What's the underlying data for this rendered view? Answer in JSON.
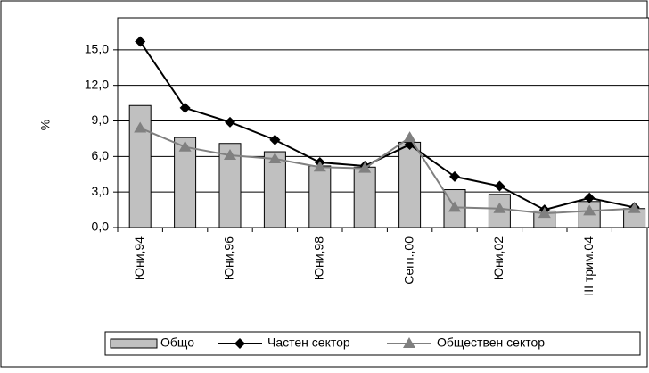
{
  "chart_data": {
    "type": "bar-line",
    "y_label": "%",
    "categories": [
      "Юни,94",
      null,
      "Юни,96",
      null,
      "Юни,98",
      null,
      "Септ.,00",
      null,
      "Юни,02",
      null,
      "III трим.04",
      null
    ],
    "series": [
      {
        "name": "Общо",
        "type": "bar",
        "color": "#c0c0c0",
        "values": [
          10.3,
          7.6,
          7.1,
          6.4,
          5.2,
          5.1,
          7.2,
          3.2,
          2.8,
          1.4,
          2.2,
          1.6
        ]
      },
      {
        "name": "Частен сектор",
        "type": "line",
        "marker": "diamond",
        "color": "#000000",
        "values": [
          15.7,
          10.1,
          8.9,
          7.4,
          5.5,
          5.2,
          7.0,
          4.3,
          3.5,
          1.5,
          2.5,
          1.7
        ]
      },
      {
        "name": "Обществен сектор",
        "type": "line",
        "marker": "triangle",
        "color": "#808080",
        "values": [
          8.4,
          6.8,
          6.1,
          5.8,
          5.1,
          5.0,
          7.6,
          1.7,
          1.6,
          1.2,
          1.4,
          1.6
        ]
      }
    ],
    "ylim": [
      0,
      17.7
    ],
    "yticks": [
      {
        "value": 0,
        "label": "0,0"
      },
      {
        "value": 3,
        "label": "3,0"
      },
      {
        "value": 6,
        "label": "6,0"
      },
      {
        "value": 9,
        "label": "9,0"
      },
      {
        "value": 12,
        "label": "12,0"
      },
      {
        "value": 15,
        "label": "15,0"
      }
    ],
    "grid": true
  }
}
